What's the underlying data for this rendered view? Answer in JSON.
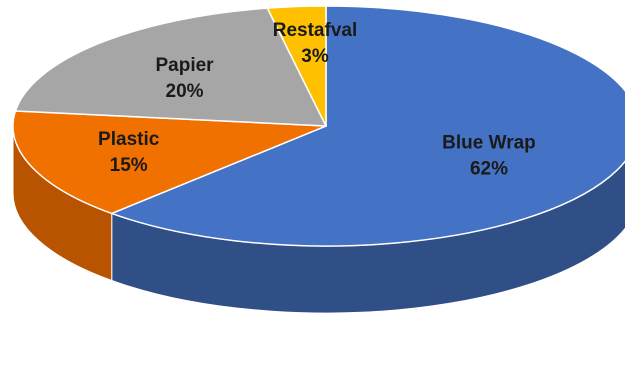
{
  "chart_data": {
    "type": "pie",
    "title": "",
    "slices": [
      {
        "label": "Blue Wrap",
        "percent_label": "62%",
        "value": 62,
        "color": "#4472C4",
        "side_color": "#2F4F86"
      },
      {
        "label": "Plastic",
        "percent_label": "15%",
        "value": 15,
        "color": "#F07000",
        "side_color": "#B85400"
      },
      {
        "label": "Papier",
        "percent_label": "20%",
        "value": 20,
        "color": "#A6A6A6",
        "side_color": "#7A7A7A"
      },
      {
        "label": "Restafval",
        "percent_label": "3%",
        "value": 3,
        "color": "#FFC000",
        "side_color": "#C99700"
      }
    ],
    "legend": "none",
    "grid": false
  }
}
